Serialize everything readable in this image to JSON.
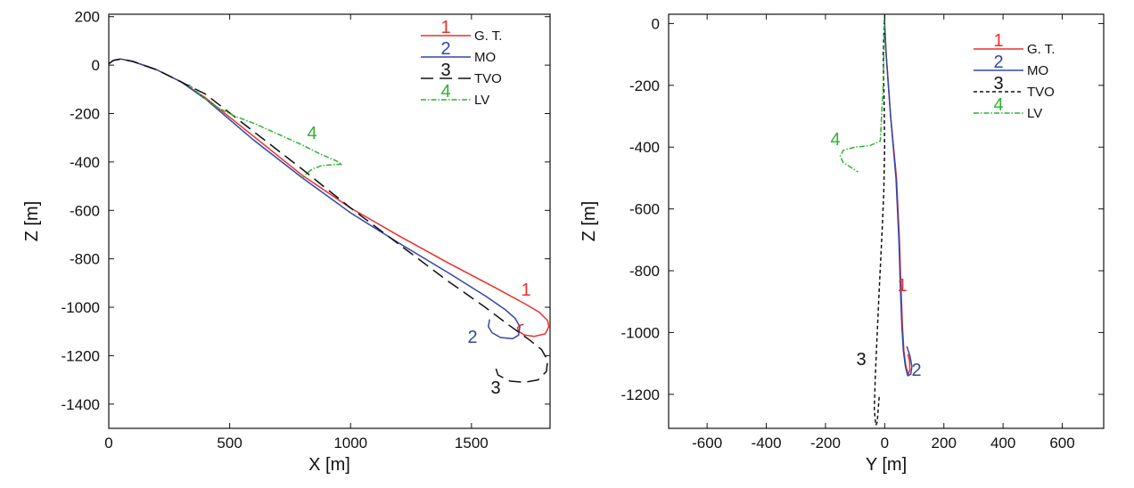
{
  "chart_data": [
    {
      "type": "line",
      "xlabel": "X [m]",
      "ylabel": "Z [m]",
      "xlim": [
        0,
        1825
      ],
      "ylim": [
        -1500,
        210
      ],
      "xticks": [
        0,
        500,
        1000,
        1500
      ],
      "yticks": [
        200,
        0,
        -200,
        -400,
        -600,
        -800,
        -1000,
        -1200,
        -1400
      ],
      "legend": "top-right",
      "series": [
        {
          "name": "G. T.",
          "tag": "1",
          "color": "#e8302b",
          "dash": "",
          "x": [
            0,
            20,
            50,
            100,
            200,
            300,
            400,
            600,
            800,
            1000,
            1200,
            1400,
            1600,
            1720,
            1780,
            1815,
            1820,
            1805,
            1760,
            1720,
            1695,
            1690,
            1700,
            1715
          ],
          "y": [
            5,
            20,
            25,
            15,
            -20,
            -70,
            -135,
            -295,
            -455,
            -590,
            -705,
            -815,
            -920,
            -985,
            -1020,
            -1055,
            -1080,
            -1110,
            -1120,
            -1115,
            -1100,
            -1085,
            -1075,
            -1070
          ]
        },
        {
          "name": "MO",
          "tag": "2",
          "color": "#3346a8",
          "dash": "",
          "x": [
            0,
            20,
            50,
            100,
            200,
            300,
            400,
            600,
            800,
            1000,
            1200,
            1400,
            1560,
            1640,
            1680,
            1700,
            1695,
            1670,
            1620,
            1585,
            1570,
            1575
          ],
          "y": [
            5,
            20,
            25,
            15,
            -20,
            -70,
            -140,
            -310,
            -465,
            -610,
            -735,
            -855,
            -955,
            -1010,
            -1045,
            -1080,
            -1115,
            -1130,
            -1125,
            -1105,
            -1080,
            -1050
          ]
        },
        {
          "name": "TVO",
          "tag": "3",
          "color": "#111111",
          "dash": "14 7",
          "x": [
            0,
            20,
            50,
            100,
            200,
            300,
            400,
            600,
            800,
            1000,
            1200,
            1400,
            1550,
            1650,
            1740,
            1790,
            1815,
            1810,
            1775,
            1720,
            1660,
            1610,
            1600
          ],
          "y": [
            5,
            20,
            25,
            15,
            -20,
            -70,
            -120,
            -275,
            -430,
            -590,
            -740,
            -890,
            -995,
            -1070,
            -1135,
            -1175,
            -1220,
            -1265,
            -1300,
            -1310,
            -1305,
            -1280,
            -1250
          ]
        },
        {
          "name": "LV",
          "tag": "4",
          "color": "#2fb12f",
          "dash": "6 2 1.5 2",
          "x": [
            330,
            400,
            450,
            520,
            600,
            700,
            800,
            880,
            940,
            965,
            940,
            880,
            840,
            810,
            800
          ],
          "y": [
            -80,
            -140,
            -175,
            -210,
            -240,
            -285,
            -330,
            -370,
            -395,
            -410,
            -410,
            -415,
            -430,
            -455,
            -470
          ]
        }
      ]
    },
    {
      "type": "line",
      "xlabel": "Y [m]",
      "ylabel": "Z [m]",
      "xlim": [
        -730,
        740
      ],
      "ylim": [
        -1310,
        30
      ],
      "xticks": [
        -600,
        -400,
        -200,
        0,
        200,
        400,
        600
      ],
      "yticks": [
        0,
        -200,
        -400,
        -600,
        -800,
        -1000,
        -1200
      ],
      "legend": "top-right",
      "series": [
        {
          "name": "G. T.",
          "tag": "1",
          "color": "#e8302b",
          "dash": "",
          "x": [
            0,
            0,
            5,
            20,
            40,
            50,
            55,
            60,
            65,
            72,
            80,
            85,
            84,
            78
          ],
          "y": [
            30,
            0,
            -100,
            -300,
            -500,
            -700,
            -850,
            -980,
            -1060,
            -1110,
            -1135,
            -1120,
            -1090,
            -1070
          ]
        },
        {
          "name": "MO",
          "tag": "2",
          "color": "#3346a8",
          "dash": "",
          "x": [
            0,
            0,
            5,
            20,
            38,
            48,
            53,
            58,
            63,
            70,
            78,
            88,
            92,
            85,
            75
          ],
          "y": [
            30,
            0,
            -100,
            -300,
            -500,
            -700,
            -850,
            -980,
            -1060,
            -1110,
            -1140,
            -1135,
            -1110,
            -1075,
            -1045
          ]
        },
        {
          "name": "TVO",
          "tag": "3",
          "color": "#111111",
          "dash": "4 3",
          "x": [
            0,
            -5,
            -2,
            0,
            -3,
            -10,
            -18,
            -25,
            -32,
            -35,
            -30,
            -25,
            -22,
            -18
          ],
          "y": [
            30,
            -100,
            -250,
            -400,
            -550,
            -700,
            -850,
            -1000,
            -1150,
            -1250,
            -1300,
            -1290,
            -1250,
            -1200
          ]
        },
        {
          "name": "LV",
          "tag": "4",
          "color": "#2fb12f",
          "dash": "6 2 1.5 2",
          "x": [
            0,
            -5,
            -15,
            -50,
            -100,
            -140,
            -150,
            -140,
            -115,
            -90
          ],
          "y": [
            30,
            -200,
            -380,
            -395,
            -400,
            -410,
            -430,
            -450,
            -465,
            -480
          ]
        }
      ]
    }
  ]
}
